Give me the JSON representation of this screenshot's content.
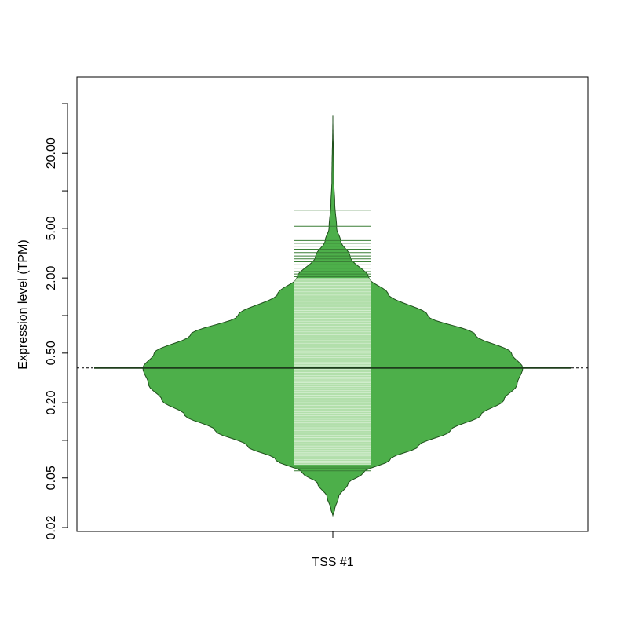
{
  "chart_data": {
    "type": "violin",
    "scale": "log10",
    "ylabel": "Expression level (TPM)",
    "xlabel": "",
    "categories": [
      "TSS #1"
    ],
    "ylim": [
      0.02,
      50
    ],
    "y_ticks": [
      {
        "value": 0.02,
        "label": "0.02"
      },
      {
        "value": 0.05,
        "label": "0.05"
      },
      {
        "value": 0.1,
        "label": ""
      },
      {
        "value": 0.2,
        "label": "0.20"
      },
      {
        "value": 0.5,
        "label": "0.50"
      },
      {
        "value": 1,
        "label": ""
      },
      {
        "value": 2,
        "label": "2.00"
      },
      {
        "value": 5,
        "label": "5.00"
      },
      {
        "value": 10,
        "label": ""
      },
      {
        "value": 20,
        "label": "20.00"
      },
      {
        "value": 50,
        "label": ""
      }
    ],
    "median": 0.38,
    "bean_range": [
      0.025,
      40
    ],
    "density_profile": [
      {
        "y": 0.025,
        "w": 0.0
      },
      {
        "y": 0.028,
        "w": 0.01
      },
      {
        "y": 0.035,
        "w": 0.03
      },
      {
        "y": 0.045,
        "w": 0.08
      },
      {
        "y": 0.055,
        "w": 0.16
      },
      {
        "y": 0.07,
        "w": 0.3
      },
      {
        "y": 0.09,
        "w": 0.45
      },
      {
        "y": 0.12,
        "w": 0.62
      },
      {
        "y": 0.16,
        "w": 0.78
      },
      {
        "y": 0.21,
        "w": 0.9
      },
      {
        "y": 0.28,
        "w": 0.97
      },
      {
        "y": 0.38,
        "w": 1.0
      },
      {
        "y": 0.5,
        "w": 0.94
      },
      {
        "y": 0.7,
        "w": 0.75
      },
      {
        "y": 1.0,
        "w": 0.5
      },
      {
        "y": 1.5,
        "w": 0.29
      },
      {
        "y": 2.0,
        "w": 0.19
      },
      {
        "y": 3.0,
        "w": 0.09
      },
      {
        "y": 4.0,
        "w": 0.04
      },
      {
        "y": 5.0,
        "w": 0.02
      },
      {
        "y": 8.0,
        "w": 0.01
      },
      {
        "y": 12.0,
        "w": 0.005
      },
      {
        "y": 40.0,
        "w": 0.0
      }
    ],
    "points": [
      0.057,
      0.06,
      0.062,
      0.064,
      0.066,
      0.068,
      0.07,
      0.072,
      0.075,
      0.078,
      0.08,
      0.083,
      0.086,
      0.09,
      0.094,
      0.098,
      0.1,
      0.105,
      0.11,
      0.115,
      0.12,
      0.126,
      0.132,
      0.138,
      0.145,
      0.15,
      0.158,
      0.165,
      0.17,
      0.18,
      0.19,
      0.2,
      0.21,
      0.22,
      0.23,
      0.24,
      0.25,
      0.26,
      0.27,
      0.28,
      0.29,
      0.3,
      0.31,
      0.32,
      0.33,
      0.34,
      0.35,
      0.36,
      0.37,
      0.38,
      0.39,
      0.4,
      0.41,
      0.42,
      0.44,
      0.46,
      0.48,
      0.5,
      0.52,
      0.55,
      0.58,
      0.6,
      0.63,
      0.66,
      0.7,
      0.74,
      0.78,
      0.82,
      0.86,
      0.9,
      0.95,
      1.0,
      1.05,
      1.1,
      1.16,
      1.22,
      1.3,
      1.38,
      1.46,
      1.55,
      1.65,
      1.75,
      1.85,
      1.95,
      2.05,
      2.15,
      2.25,
      2.4,
      2.55,
      2.7,
      2.85,
      3.0,
      3.2,
      3.4,
      3.6,
      3.8,
      4.0,
      5.2,
      7.0,
      27.0
    ]
  }
}
